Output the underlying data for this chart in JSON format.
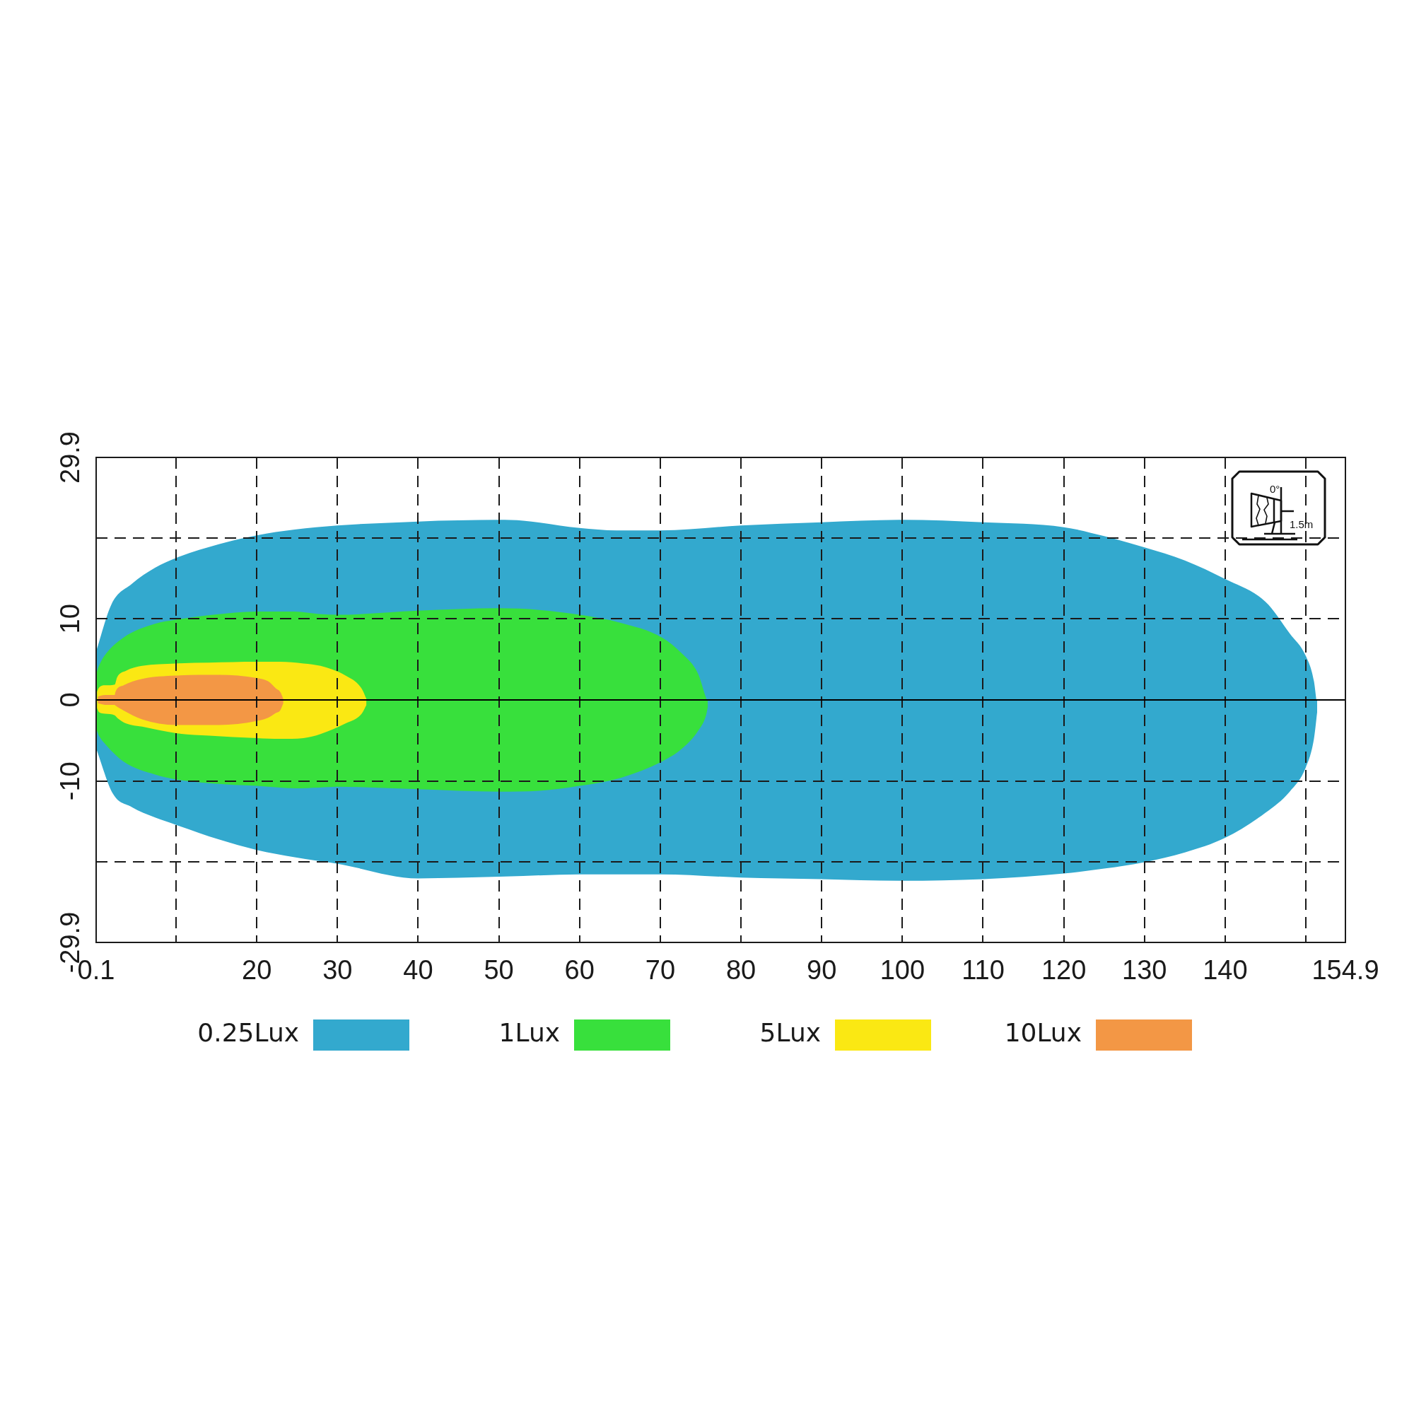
{
  "chart_data": {
    "type": "area",
    "series": [
      {
        "name": "0.25Lux",
        "color": "#33a9ce",
        "x": [
          0.1,
          2.0,
          4.5,
          7.4,
          10,
          15.3,
          20,
          24.7,
          30,
          40,
          50,
          53,
          60,
          64.6,
          70,
          80,
          90,
          100,
          110,
          120,
          125,
          130,
          135,
          140,
          145,
          148,
          150,
          151,
          151.3
        ],
        "values": [
          6.0,
          11.8,
          14.3,
          16.3,
          17.5,
          19.2,
          20.3,
          21.0,
          21.5,
          22.0,
          22.2,
          22.1,
          21.2,
          20.9,
          20.9,
          21.5,
          21.9,
          22.2,
          21.9,
          21.3,
          20.2,
          18.8,
          17.2,
          14.9,
          12.1,
          8.2,
          5.4,
          2.3,
          0
        ]
      },
      {
        "color": "#33a9ce",
        "x": [
          0.1,
          2.2,
          4.5,
          7.4,
          10,
          15.3,
          20,
          24.7,
          30,
          40,
          50,
          53,
          60,
          64.6,
          70,
          80,
          90,
          100,
          110,
          120,
          125,
          130,
          135,
          140,
          145,
          148,
          150,
          151,
          151.4
        ],
        "values": [
          -6.0,
          -11.6,
          -13.2,
          -14.5,
          -15.4,
          -17.2,
          -18.5,
          -19.4,
          -20.2,
          -22.0,
          -21.8,
          -21.7,
          -21.5,
          -21.5,
          -21.5,
          -21.9,
          -22.1,
          -22.3,
          -22.1,
          -21.4,
          -20.8,
          -20.0,
          -18.8,
          -17.0,
          -13.9,
          -11.3,
          -8.3,
          -4.8,
          -1.5
        ]
      },
      {
        "name": "1Lux",
        "color": "#38e03c",
        "x": [
          0.1,
          0.45,
          1.1,
          3.5,
          7.4,
          10,
          14.6,
          20,
          24.7,
          27.7,
          30,
          40,
          50,
          55,
          60,
          65.1,
          70.2,
          72.7,
          74.7,
          75.7,
          75.8
        ],
        "values": [
          3.2,
          4.2,
          5.4,
          7.7,
          9.4,
          9.9,
          10.5,
          10.9,
          10.9,
          10.6,
          10.5,
          11.0,
          11.3,
          11.1,
          10.5,
          9.5,
          7.7,
          5.7,
          3.2,
          0.2,
          0
        ]
      },
      {
        "color": "#38e03c",
        "x": [
          0.1,
          0.45,
          1.1,
          3.5,
          7.4,
          10,
          14.6,
          20,
          24.7,
          27.7,
          30,
          40,
          50,
          55,
          60,
          65.1,
          70.2,
          72.7,
          74.7,
          75.7,
          75.9
        ],
        "values": [
          -3.5,
          -4.4,
          -5.3,
          -7.6,
          -9.2,
          -9.8,
          -10.3,
          -10.6,
          -10.9,
          -10.8,
          -10.7,
          -11.0,
          -11.3,
          -11.2,
          -10.6,
          -9.6,
          -7.6,
          -6.0,
          -3.8,
          -1.8,
          -0.8
        ]
      },
      {
        "name": "5Lux",
        "color": "#fae813",
        "x": [
          0.2,
          0.45,
          1.2,
          2.4,
          2.7,
          3.8,
          5.8,
          10,
          14.1,
          20,
          22.9,
          25.8,
          27.9,
          31,
          33,
          33.6
        ],
        "values": [
          1.0,
          1.5,
          1.8,
          1.9,
          2.8,
          3.6,
          4.2,
          4.5,
          4.6,
          4.7,
          4.7,
          4.5,
          4.2,
          3.0,
          1.4,
          0.1
        ]
      },
      {
        "color": "#fae813",
        "x": [
          0.2,
          0.45,
          1.2,
          2.4,
          2.7,
          3.8,
          5.8,
          10,
          14.1,
          20,
          22.9,
          25.8,
          27.9,
          31,
          33,
          33.6
        ],
        "values": [
          -1.0,
          -1.5,
          -1.7,
          -1.9,
          -2.2,
          -2.9,
          -3.3,
          -4.1,
          -4.4,
          -4.7,
          -4.8,
          -4.7,
          -4.2,
          -2.9,
          -1.7,
          -0.6
        ]
      },
      {
        "name": "10Lux",
        "color": "#f39745",
        "x": [
          0.3,
          1.2,
          2.4,
          2.5,
          3.5,
          5.8,
          10,
          15.3,
          20,
          21.4,
          22.4,
          22.9,
          23.3
        ],
        "values": [
          0.4,
          0.6,
          0.6,
          1.0,
          1.8,
          2.6,
          3.0,
          3.1,
          2.7,
          2.3,
          1.4,
          1.0,
          0.1
        ]
      },
      {
        "color": "#f39745",
        "x": [
          0.3,
          1.2,
          2.4,
          2.5,
          3.5,
          5.8,
          10,
          15.3,
          20,
          21.4,
          22.4,
          22.9,
          23.3
        ],
        "values": [
          -0.4,
          -0.6,
          -0.6,
          -0.7,
          -1.3,
          -2.4,
          -3.1,
          -3.1,
          -2.6,
          -2.2,
          -1.6,
          -1.3,
          -0.4
        ]
      }
    ],
    "xlim": [
      0.1,
      154.9
    ],
    "xticks": [
      0.1,
      {
        "value": 10,
        "label": null
      },
      20,
      30,
      40,
      50,
      60,
      70,
      80,
      90,
      100,
      110,
      120,
      130,
      140,
      {
        "value": 150,
        "label": null
      },
      154.9
    ],
    "ylim": [
      -29.9,
      29.9
    ],
    "yticks": [
      -29.9,
      {
        "value": -20,
        "label": null
      },
      -10,
      0,
      10,
      {
        "value": 20,
        "label": null
      },
      29.9
    ],
    "grid": true,
    "legend": "bottom",
    "ref_lines": [
      {
        "axis": "y",
        "value": 0,
        "color": "#000000",
        "line_style": "solid"
      }
    ],
    "annotations": [
      "0°",
      "1.5m"
    ]
  }
}
